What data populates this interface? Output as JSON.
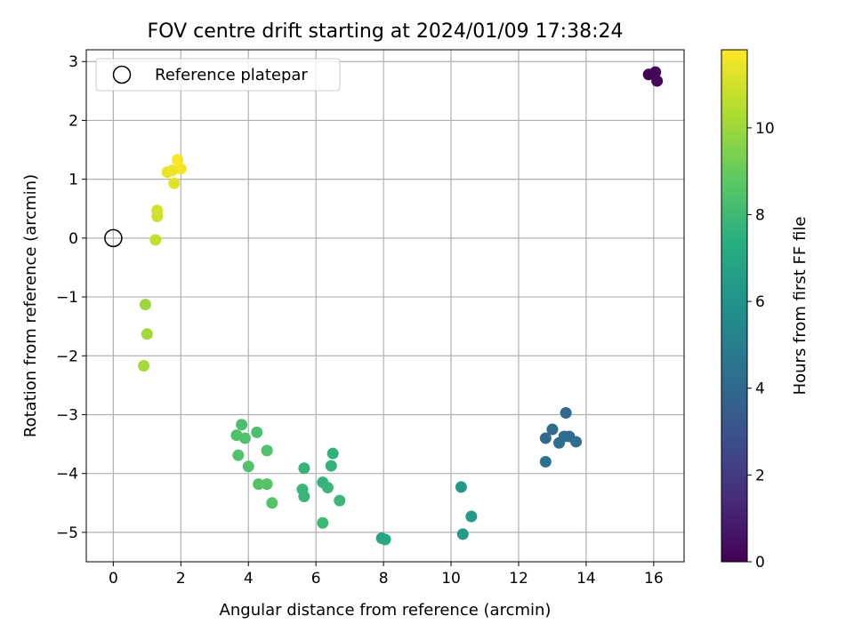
{
  "chart_data": {
    "type": "scatter",
    "title": "FOV centre drift starting at 2024/01/09 17:38:24",
    "xlabel": "Angular distance from reference (arcmin)",
    "ylabel": "Rotation from reference (arcmin)",
    "xlim": [
      -0.8,
      16.9
    ],
    "ylim": [
      -5.5,
      3.2
    ],
    "xticks": [
      0,
      2,
      4,
      6,
      8,
      10,
      12,
      14,
      16
    ],
    "yticks": [
      -5,
      -4,
      -3,
      -2,
      -1,
      0,
      1,
      2,
      3
    ],
    "grid": true,
    "legend": {
      "placement": "top-left",
      "entries": [
        "Reference platepar"
      ]
    },
    "reference": {
      "x": 0,
      "y": 0,
      "label": "Reference platepar"
    },
    "colorbar": {
      "label": "Hours from first FF file",
      "min": 0,
      "max": 11.8,
      "ticks": [
        0,
        2,
        4,
        6,
        8,
        10
      ],
      "colormap": "viridis"
    },
    "points": [
      {
        "x": 15.85,
        "y": 2.78,
        "c": 0.0
      },
      {
        "x": 16.05,
        "y": 2.82,
        "c": 0.1
      },
      {
        "x": 16.1,
        "y": 2.67,
        "c": 0.2
      },
      {
        "x": 13.4,
        "y": -2.97,
        "c": 4.0
      },
      {
        "x": 13.0,
        "y": -3.25,
        "c": 4.1
      },
      {
        "x": 12.8,
        "y": -3.4,
        "c": 4.1
      },
      {
        "x": 13.35,
        "y": -3.37,
        "c": 4.2
      },
      {
        "x": 13.5,
        "y": -3.37,
        "c": 4.2
      },
      {
        "x": 13.2,
        "y": -3.48,
        "c": 4.3
      },
      {
        "x": 13.7,
        "y": -3.46,
        "c": 4.3
      },
      {
        "x": 12.8,
        "y": -3.8,
        "c": 4.4
      },
      {
        "x": 10.3,
        "y": -4.23,
        "c": 6.3
      },
      {
        "x": 10.6,
        "y": -4.73,
        "c": 6.4
      },
      {
        "x": 10.35,
        "y": -5.03,
        "c": 6.5
      },
      {
        "x": 7.95,
        "y": -5.1,
        "c": 6.9
      },
      {
        "x": 8.05,
        "y": -5.12,
        "c": 7.0
      },
      {
        "x": 6.5,
        "y": -3.66,
        "c": 7.6
      },
      {
        "x": 6.45,
        "y": -3.87,
        "c": 7.6
      },
      {
        "x": 5.65,
        "y": -3.91,
        "c": 7.7
      },
      {
        "x": 6.2,
        "y": -4.15,
        "c": 7.7
      },
      {
        "x": 5.6,
        "y": -4.27,
        "c": 7.8
      },
      {
        "x": 6.35,
        "y": -4.24,
        "c": 7.8
      },
      {
        "x": 5.65,
        "y": -4.39,
        "c": 7.8
      },
      {
        "x": 6.7,
        "y": -4.46,
        "c": 7.9
      },
      {
        "x": 6.2,
        "y": -4.84,
        "c": 7.9
      },
      {
        "x": 3.8,
        "y": -3.17,
        "c": 8.3
      },
      {
        "x": 4.25,
        "y": -3.3,
        "c": 8.3
      },
      {
        "x": 3.65,
        "y": -3.35,
        "c": 8.4
      },
      {
        "x": 3.9,
        "y": -3.4,
        "c": 8.4
      },
      {
        "x": 4.55,
        "y": -3.61,
        "c": 8.4
      },
      {
        "x": 3.7,
        "y": -3.69,
        "c": 8.5
      },
      {
        "x": 4.0,
        "y": -3.88,
        "c": 8.5
      },
      {
        "x": 4.3,
        "y": -4.18,
        "c": 8.5
      },
      {
        "x": 4.55,
        "y": -4.18,
        "c": 8.6
      },
      {
        "x": 4.7,
        "y": -4.5,
        "c": 8.6
      },
      {
        "x": 0.95,
        "y": -1.13,
        "c": 10.0
      },
      {
        "x": 1.0,
        "y": -1.63,
        "c": 10.1
      },
      {
        "x": 0.9,
        "y": -2.17,
        "c": 10.2
      },
      {
        "x": 1.25,
        "y": -0.03,
        "c": 10.7
      },
      {
        "x": 1.3,
        "y": 0.37,
        "c": 10.9
      },
      {
        "x": 1.3,
        "y": 0.47,
        "c": 11.0
      },
      {
        "x": 1.8,
        "y": 0.93,
        "c": 11.3
      },
      {
        "x": 1.6,
        "y": 1.12,
        "c": 11.4
      },
      {
        "x": 1.75,
        "y": 1.15,
        "c": 11.5
      },
      {
        "x": 2.0,
        "y": 1.18,
        "c": 11.6
      },
      {
        "x": 1.9,
        "y": 1.33,
        "c": 11.8
      }
    ]
  }
}
